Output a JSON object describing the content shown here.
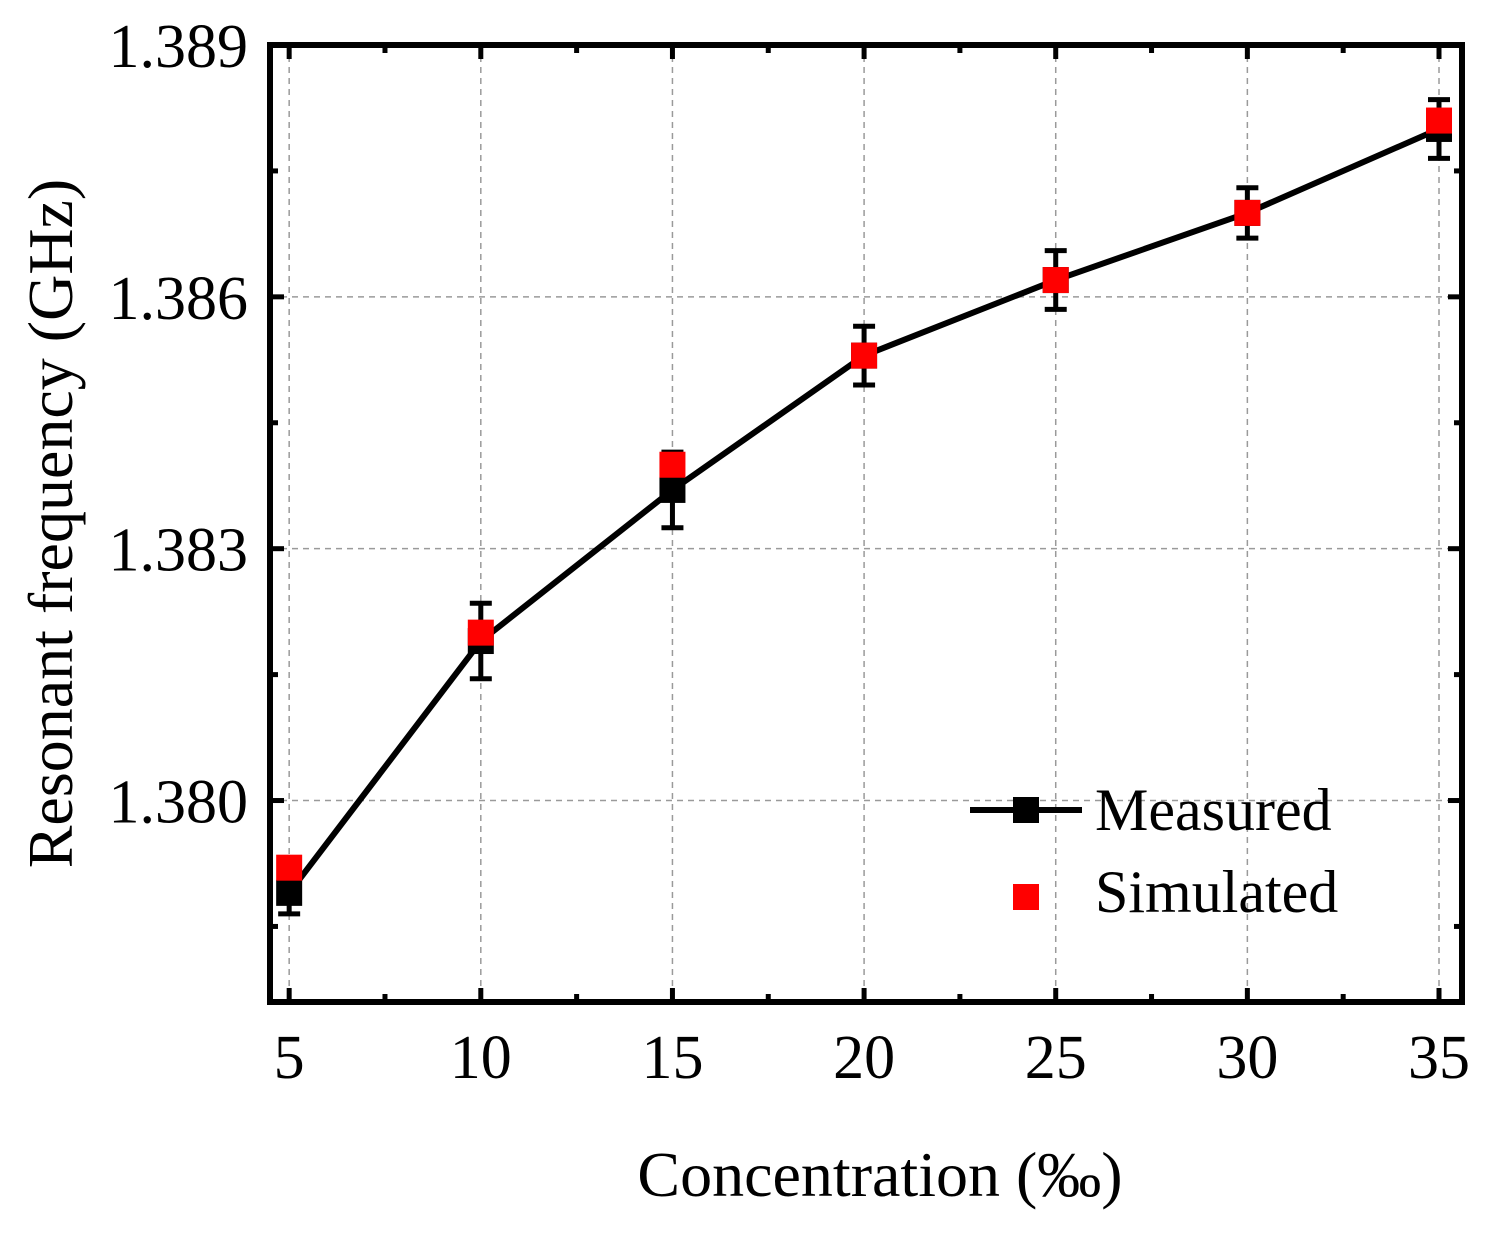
{
  "chart_data": {
    "type": "line",
    "title": "",
    "xlabel": "Concentration (‰)",
    "ylabel": "Resonant frequency (GHz)",
    "x": [
      5,
      10,
      15,
      20,
      25,
      30,
      35
    ],
    "xlim": [
      4.5,
      35.6
    ],
    "ylim": [
      1.3776,
      1.389
    ],
    "xticks": [
      "5",
      "10",
      "15",
      "20",
      "25",
      "30",
      "35"
    ],
    "yticks": [
      "1.380",
      "1.383",
      "1.386",
      "1.389"
    ],
    "grid": true,
    "legend_position": "bottom-right",
    "series": [
      {
        "name": "Measured",
        "style": "line-square",
        "color": "#000000",
        "values": [
          1.3789,
          1.3819,
          1.3837,
          1.3853,
          1.3862,
          1.387,
          1.388
        ],
        "error": [
          0.00025,
          0.00045,
          0.00045,
          0.00035,
          0.00035,
          0.0003,
          0.00035
        ]
      },
      {
        "name": "Simulated",
        "style": "square",
        "color": "#ff0000",
        "values": [
          1.3792,
          1.382,
          1.384,
          1.3853,
          1.3862,
          1.387,
          1.3881
        ]
      }
    ]
  }
}
